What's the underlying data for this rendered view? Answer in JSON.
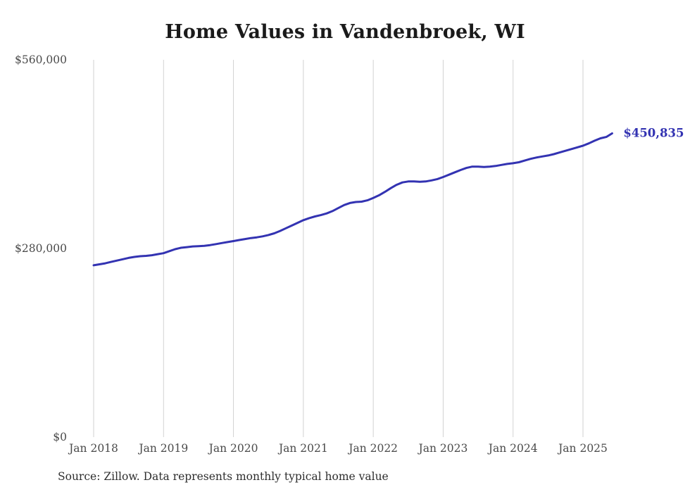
{
  "colors": {
    "line": "#3333b2",
    "grid": "#d2d2d2",
    "title": "#1a1a1a",
    "axis_label": "#4a4a4a",
    "source": "#2e2e2e",
    "background": "#ffffff"
  },
  "chart_data": {
    "type": "line",
    "title": "Home Values in Vandenbroek, WI",
    "source_note": "Source: Zillow. Data represents monthly typical home value",
    "x_start": "2018-01",
    "x_interval": "monthly",
    "x_tick_labels": [
      "Jan 2018",
      "Jan 2019",
      "Jan 2020",
      "Jan 2021",
      "Jan 2022",
      "Jan 2023",
      "Jan 2024",
      "Jan 2025"
    ],
    "y_ticks": [
      {
        "label": "$0",
        "value": 0
      },
      {
        "label": "$280,000",
        "value": 280000
      },
      {
        "label": "$560,000",
        "value": 560000
      }
    ],
    "ylim": [
      0,
      560000
    ],
    "grid": "vertical-only",
    "legend": "none",
    "last_value_label": "$450,835",
    "values": [
      255000,
      256500,
      258000,
      260000,
      262000,
      264000,
      266000,
      267500,
      268500,
      269000,
      270000,
      271500,
      273000,
      276000,
      279000,
      281000,
      282000,
      283000,
      283500,
      284000,
      285000,
      286500,
      288000,
      289500,
      291000,
      292500,
      294000,
      295500,
      296500,
      298000,
      300000,
      302500,
      306000,
      310000,
      314000,
      318000,
      322000,
      325000,
      327500,
      329500,
      332000,
      335500,
      340000,
      344500,
      347500,
      349000,
      349500,
      351500,
      355000,
      359000,
      364000,
      369500,
      374500,
      378000,
      379500,
      379500,
      379000,
      379500,
      381000,
      383000,
      386000,
      389500,
      393000,
      396500,
      399500,
      401500,
      401500,
      401000,
      401500,
      402500,
      404000,
      405500,
      406500,
      408000,
      410500,
      413000,
      415000,
      416500,
      418000,
      420000,
      422500,
      425000,
      427500,
      430000,
      432500,
      436000,
      440000,
      443500,
      445500,
      450835
    ]
  }
}
